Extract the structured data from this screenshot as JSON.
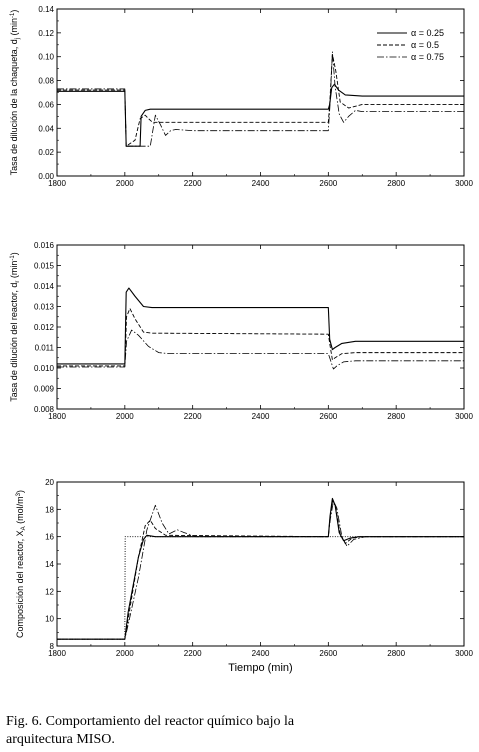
{
  "caption": {
    "line1": "Fig. 6. Comportamiento del reactor químico bajo la",
    "line2": "arquitectura MISO."
  },
  "chart_data": [
    {
      "type": "line",
      "ylabel_main": "Tasa de dilución de la chaqueta, d",
      "ylabel_sub": "j",
      "ylabel_unit": "(min",
      "ylabel_sup": "-1",
      "ylabel_end": ")",
      "xlim": [
        1800,
        3000
      ],
      "ylim": [
        0.0,
        0.14
      ],
      "xticks": [
        1800,
        2000,
        2200,
        2400,
        2600,
        2800,
        3000
      ],
      "yticks": [
        "0.00",
        "0.02",
        "0.04",
        "0.06",
        "0.08",
        "0.10",
        "0.12",
        "0.14"
      ],
      "legend": {
        "position": "top-right",
        "alpha_symbol": "α",
        "entries": [
          "α = 0.25",
          "α = 0.5",
          "α = 0.75"
        ]
      },
      "series": [
        {
          "name": "α = 0.25",
          "style": "solid",
          "x": [
            1800,
            2000,
            2004,
            2045,
            2048,
            2060,
            2075,
            2600,
            2604,
            2610,
            2618,
            2630,
            2650,
            2700,
            3000
          ],
          "y": [
            0.071,
            0.071,
            0.025,
            0.025,
            0.05,
            0.055,
            0.056,
            0.056,
            0.06,
            0.074,
            0.077,
            0.072,
            0.068,
            0.067,
            0.067
          ]
        },
        {
          "name": "α = 0.5",
          "style": "dashed",
          "x": [
            1800,
            2000,
            2004,
            2030,
            2045,
            2060,
            2070,
            2082,
            2100,
            2600,
            2604,
            2612,
            2622,
            2635,
            2660,
            2700,
            3000
          ],
          "y": [
            0.072,
            0.072,
            0.025,
            0.03,
            0.048,
            0.051,
            0.048,
            0.045,
            0.045,
            0.045,
            0.06,
            0.102,
            0.088,
            0.062,
            0.057,
            0.06,
            0.06
          ]
        },
        {
          "name": "α = 0.75",
          "style": "dashdot",
          "x": [
            1800,
            2000,
            2004,
            2075,
            2090,
            2105,
            2120,
            2135,
            2150,
            2200,
            2600,
            2605,
            2612,
            2620,
            2632,
            2645,
            2660,
            2680,
            2700,
            3000
          ],
          "y": [
            0.073,
            0.073,
            0.025,
            0.025,
            0.051,
            0.043,
            0.034,
            0.038,
            0.039,
            0.038,
            0.038,
            0.06,
            0.104,
            0.075,
            0.052,
            0.045,
            0.05,
            0.055,
            0.054,
            0.054
          ]
        }
      ]
    },
    {
      "type": "line",
      "ylabel_main": "Tasa de dilución del reactor, d",
      "ylabel_sub": "r",
      "ylabel_unit": "(min",
      "ylabel_sup": "-1",
      "ylabel_end": ")",
      "xlim": [
        1800,
        3000
      ],
      "ylim": [
        0.008,
        0.016
      ],
      "xticks": [
        1800,
        2000,
        2200,
        2400,
        2600,
        2800,
        3000
      ],
      "yticks": [
        "0.008",
        "0.009",
        "0.010",
        "0.011",
        "0.012",
        "0.013",
        "0.014",
        "0.015",
        "0.016"
      ],
      "series": [
        {
          "name": "α = 0.25",
          "style": "solid",
          "x": [
            1800,
            2000,
            2004,
            2012,
            2030,
            2055,
            2080,
            2600,
            2604,
            2612,
            2620,
            2640,
            2680,
            3000
          ],
          "y": [
            0.0102,
            0.0102,
            0.0137,
            0.0139,
            0.0135,
            0.013,
            0.01295,
            0.01295,
            0.0114,
            0.0109,
            0.011,
            0.0112,
            0.0113,
            0.0113
          ]
        },
        {
          "name": "α = 0.5",
          "style": "dashed",
          "x": [
            1800,
            2000,
            2005,
            2015,
            2030,
            2055,
            2080,
            2600,
            2605,
            2612,
            2620,
            2640,
            2680,
            3000
          ],
          "y": [
            0.0101,
            0.0101,
            0.0125,
            0.0129,
            0.0124,
            0.01175,
            0.0117,
            0.01165,
            0.0111,
            0.0104,
            0.0105,
            0.0107,
            0.01075,
            0.01075
          ]
        },
        {
          "name": "α = 0.75",
          "style": "dashdot",
          "x": [
            1800,
            2000,
            2005,
            2020,
            2040,
            2070,
            2100,
            2130,
            2600,
            2606,
            2615,
            2625,
            2645,
            2680,
            3000
          ],
          "y": [
            0.01005,
            0.01005,
            0.0113,
            0.01185,
            0.0116,
            0.01105,
            0.01075,
            0.0107,
            0.0107,
            0.0104,
            0.00995,
            0.0101,
            0.0103,
            0.01035,
            0.01035
          ]
        }
      ]
    },
    {
      "type": "line",
      "ylabel_main": "Composición del reactor, X",
      "ylabel_sub": "A",
      "ylabel_unit": "(mol/m",
      "ylabel_sup": "3",
      "ylabel_end": ")",
      "xlabel": "Tiempo (min)",
      "xlim": [
        1800,
        3000
      ],
      "ylim": [
        8,
        20
      ],
      "xticks": [
        1800,
        2000,
        2200,
        2400,
        2600,
        2800,
        3000
      ],
      "yticks": [
        "8",
        "10",
        "12",
        "14",
        "16",
        "18",
        "20"
      ],
      "series": [
        {
          "name": "setpoint",
          "style": "dotted",
          "x": [
            1800,
            2000,
            2001,
            3000
          ],
          "y": [
            8.5,
            8.5,
            16.0,
            16.0
          ]
        },
        {
          "name": "α = 0.25",
          "style": "solid",
          "x": [
            1800,
            2000,
            2010,
            2040,
            2055,
            2065,
            2090,
            2600,
            2605,
            2612,
            2620,
            2632,
            2645,
            2665,
            2690,
            3000
          ],
          "y": [
            8.5,
            8.5,
            10.5,
            14.5,
            15.8,
            16.1,
            16.0,
            16.0,
            17.5,
            18.8,
            18.3,
            16.3,
            15.7,
            15.9,
            16.0,
            16.0
          ]
        },
        {
          "name": "α = 0.5",
          "style": "dashed",
          "x": [
            1800,
            2000,
            2010,
            2040,
            2060,
            2075,
            2090,
            2120,
            2600,
            2605,
            2613,
            2622,
            2635,
            2650,
            2670,
            2700,
            3000
          ],
          "y": [
            8.5,
            8.5,
            10.0,
            14.5,
            16.8,
            17.2,
            16.6,
            16.1,
            16.0,
            17.4,
            18.7,
            18.1,
            16.2,
            15.5,
            15.9,
            16.0,
            16.0
          ]
        },
        {
          "name": "α = 0.75",
          "style": "dashdot",
          "x": [
            1800,
            2000,
            2012,
            2040,
            2065,
            2090,
            2110,
            2130,
            2155,
            2175,
            2210,
            2600,
            2606,
            2615,
            2625,
            2640,
            2655,
            2675,
            2710,
            3000
          ],
          "y": [
            8.5,
            8.5,
            9.8,
            13.0,
            16.5,
            18.3,
            17.0,
            16.2,
            16.5,
            16.3,
            16.0,
            16.0,
            17.3,
            18.6,
            18.1,
            16.0,
            15.3,
            15.8,
            16.0,
            16.0
          ]
        }
      ]
    }
  ]
}
